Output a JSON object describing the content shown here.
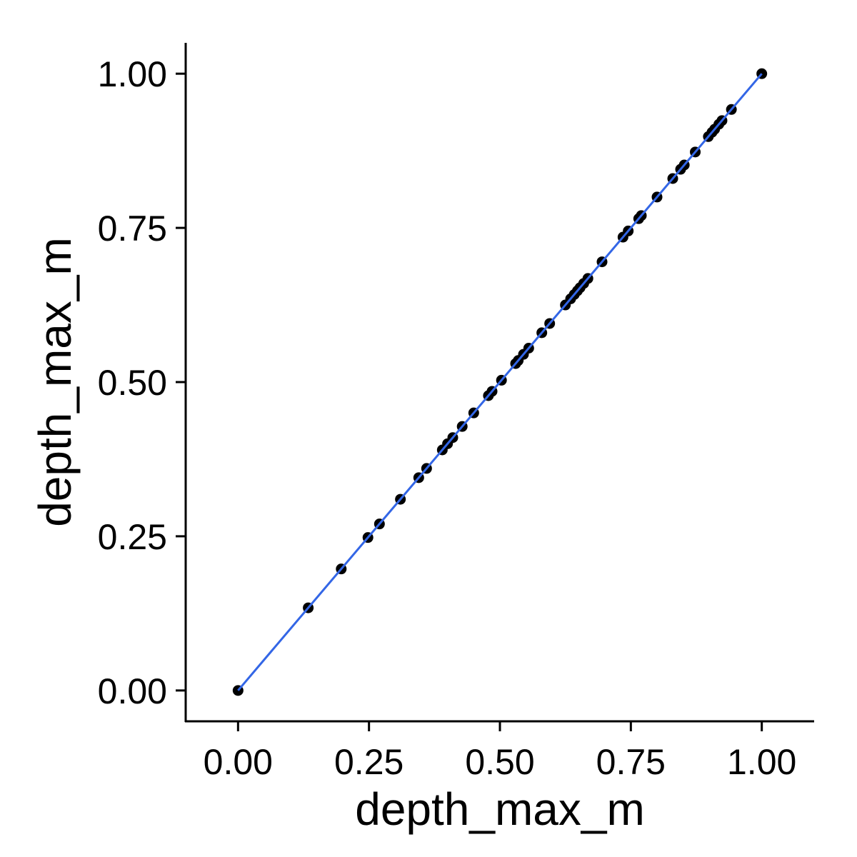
{
  "chart_data": {
    "type": "scatter",
    "title": "",
    "xlabel": "depth_max_m",
    "ylabel": "depth_max_m",
    "xlim": [
      -0.1,
      1.1
    ],
    "ylim": [
      -0.05,
      1.05
    ],
    "x_ticks": [
      {
        "value": 0,
        "label": "0.00"
      },
      {
        "value": 0.25,
        "label": "0.25"
      },
      {
        "value": 0.5,
        "label": "0.50"
      },
      {
        "value": 0.75,
        "label": "0.75"
      },
      {
        "value": 1,
        "label": "1.00"
      }
    ],
    "y_ticks": [
      {
        "value": 0,
        "label": "0.00"
      },
      {
        "value": 0.25,
        "label": "0.25"
      },
      {
        "value": 0.5,
        "label": "0.50"
      },
      {
        "value": 0.75,
        "label": "0.75"
      },
      {
        "value": 1,
        "label": "1.00"
      }
    ],
    "grid": false,
    "points": {
      "x": [
        0,
        0.134,
        0.197,
        0.248,
        0.27,
        0.31,
        0.345,
        0.36,
        0.39,
        0.4,
        0.41,
        0.428,
        0.45,
        0.478,
        0.485,
        0.503,
        0.53,
        0.535,
        0.545,
        0.555,
        0.58,
        0.595,
        0.625,
        0.635,
        0.642,
        0.648,
        0.653,
        0.66,
        0.668,
        0.695,
        0.735,
        0.745,
        0.765,
        0.77,
        0.8,
        0.83,
        0.845,
        0.852,
        0.873,
        0.898,
        0.905,
        0.91,
        0.918,
        0.924,
        0.942,
        1
      ],
      "y": [
        0,
        0.134,
        0.197,
        0.248,
        0.27,
        0.31,
        0.345,
        0.36,
        0.39,
        0.4,
        0.41,
        0.428,
        0.45,
        0.478,
        0.485,
        0.503,
        0.53,
        0.535,
        0.545,
        0.555,
        0.58,
        0.595,
        0.625,
        0.635,
        0.642,
        0.648,
        0.653,
        0.66,
        0.668,
        0.695,
        0.735,
        0.745,
        0.765,
        0.77,
        0.8,
        0.83,
        0.845,
        0.852,
        0.873,
        0.898,
        0.905,
        0.91,
        0.918,
        0.924,
        0.942,
        1
      ],
      "color": "#000000"
    },
    "fit_line": {
      "x": [
        0,
        1
      ],
      "y": [
        0,
        1
      ],
      "color": "#3366e6"
    }
  }
}
